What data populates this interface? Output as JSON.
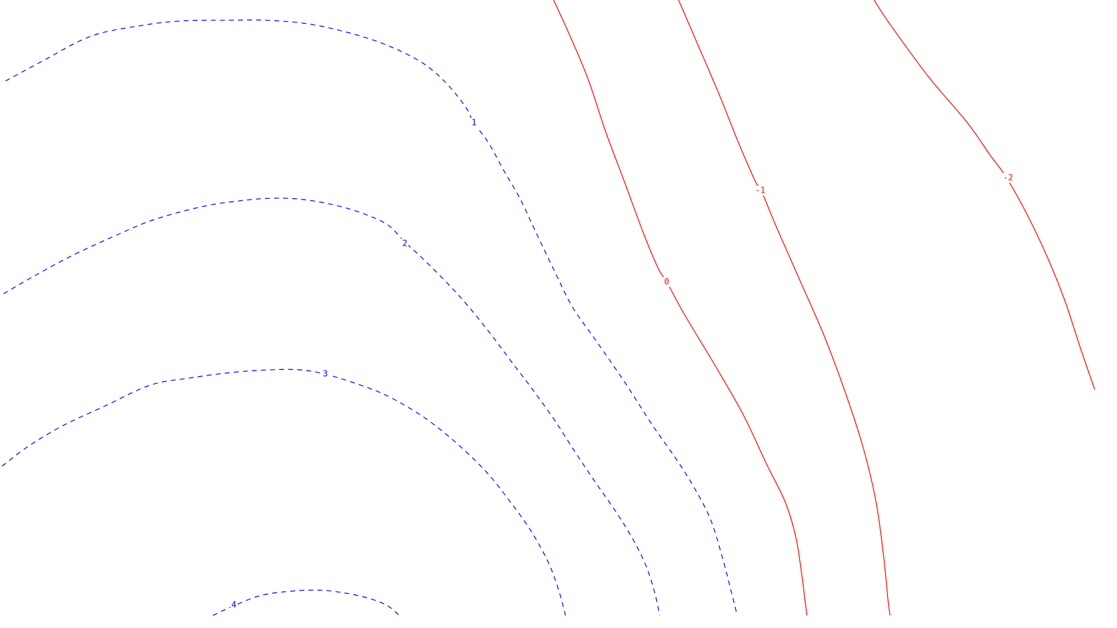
{
  "chart_data": {
    "type": "contour",
    "title": "",
    "xlabel": "",
    "ylabel": "",
    "axes_visible": false,
    "grid": false,
    "legend": "none",
    "styles": {
      "negative_or_zero": {
        "color": "#ff0000",
        "dash": "solid"
      },
      "positive": {
        "color": "#0000ff",
        "dash": "dashed"
      }
    },
    "levels": [
      {
        "level": -2,
        "label": "-2",
        "color": "#ff0000",
        "linestyle": "solid"
      },
      {
        "level": -1,
        "label": "-1",
        "color": "#ff0000",
        "linestyle": "solid"
      },
      {
        "level": 0,
        "label": "0",
        "color": "#ff0000",
        "linestyle": "solid"
      },
      {
        "level": 1,
        "label": "1",
        "color": "#0000ff",
        "linestyle": "dashed"
      },
      {
        "level": 2,
        "label": "2",
        "color": "#0000ff",
        "linestyle": "dashed"
      },
      {
        "level": 3,
        "label": "3",
        "color": "#0000ff",
        "linestyle": "dashed"
      },
      {
        "level": 4,
        "label": "4",
        "color": "#0000ff",
        "linestyle": "dashed"
      }
    ]
  }
}
